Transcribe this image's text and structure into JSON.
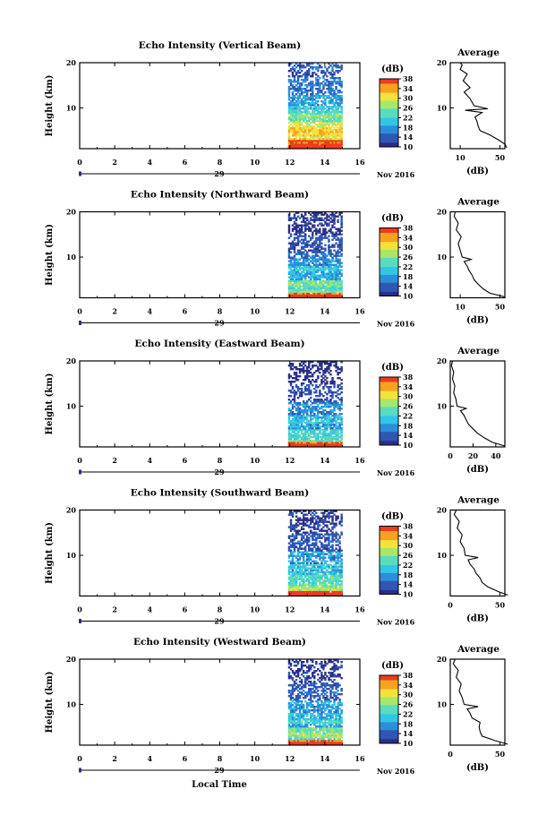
{
  "figure": {
    "time_axis_label": "Local Time",
    "date_day": "29",
    "date_month_year": "Nov 2016"
  },
  "colorbar": {
    "unit_label": "(dB)",
    "ticks": [
      "10",
      "14",
      "18",
      "22",
      "26",
      "30",
      "34",
      "38"
    ],
    "range": [
      10,
      38
    ],
    "colors": [
      "#2b2f86",
      "#2f57b4",
      "#2a8fd9",
      "#32c6e6",
      "#58dcc0",
      "#a8e66a",
      "#f2e23c",
      "#f7a21f",
      "#ee3a1f"
    ]
  },
  "chart_data": [
    {
      "type": "heatmap",
      "title": "Echo Intensity (Vertical Beam)",
      "ylabel": "Height (km)",
      "xlim": [
        0,
        16
      ],
      "ylim": [
        1,
        20
      ],
      "xticks": [
        "0",
        "2",
        "4",
        "6",
        "8",
        "10",
        "12",
        "14",
        "16"
      ],
      "yticks": [
        "20",
        "10"
      ],
      "data_time_range": [
        11.9,
        15
      ],
      "average_panel": {
        "title": "Average",
        "xlabel": "(dB)",
        "xlim": [
          0,
          55
        ],
        "xticks": [
          "10",
          "50"
        ],
        "yticks": [
          "20",
          "10"
        ],
        "profile": [
          [
            57,
            1.2
          ],
          [
            55,
            2
          ],
          [
            48,
            3
          ],
          [
            40,
            4
          ],
          [
            30,
            5
          ],
          [
            28,
            6
          ],
          [
            27,
            7
          ],
          [
            25,
            8
          ],
          [
            32,
            9
          ],
          [
            15,
            9.5
          ],
          [
            38,
            9.8
          ],
          [
            24,
            10.5
          ],
          [
            20,
            12
          ],
          [
            14,
            13.5
          ],
          [
            20,
            14.5
          ],
          [
            13,
            16
          ],
          [
            17,
            17.5
          ],
          [
            10,
            18.5
          ],
          [
            12,
            19.5
          ],
          [
            10,
            20
          ]
        ],
        "layers": [
          [
            1,
            3,
            0.95,
            0.12,
            0.01
          ],
          [
            3,
            7,
            0.78,
            0.18,
            0.05
          ],
          [
            7,
            9,
            0.55,
            0.22,
            0.08
          ],
          [
            9,
            10.6,
            0.4,
            0.2,
            0.12
          ],
          [
            10.6,
            13,
            0.3,
            0.16,
            0.22
          ],
          [
            13,
            16,
            0.22,
            0.16,
            0.4
          ],
          [
            16,
            20,
            0.14,
            0.12,
            0.55
          ]
        ]
      }
    },
    {
      "type": "heatmap",
      "title": "Echo Intensity (Northward Beam)",
      "ylabel": "Height (km)",
      "xlim": [
        0,
        16
      ],
      "ylim": [
        1,
        20
      ],
      "xticks": [
        "0",
        "2",
        "4",
        "6",
        "8",
        "10",
        "12",
        "14",
        "16"
      ],
      "yticks": [
        "20",
        "10"
      ],
      "data_time_range": [
        11.9,
        15
      ],
      "average_panel": {
        "title": "Average",
        "xlabel": "(dB)",
        "xlim": [
          0,
          55
        ],
        "xticks": [
          "10",
          "50"
        ],
        "yticks": [
          "20",
          "10"
        ],
        "profile": [
          [
            55,
            1.2
          ],
          [
            40,
            2
          ],
          [
            33,
            3
          ],
          [
            28,
            4
          ],
          [
            24,
            5
          ],
          [
            22,
            6
          ],
          [
            19,
            7
          ],
          [
            17,
            8
          ],
          [
            14,
            9
          ],
          [
            21,
            9.5
          ],
          [
            12,
            10
          ],
          [
            10,
            11.5
          ],
          [
            8,
            13
          ],
          [
            11,
            14.5
          ],
          [
            6,
            16
          ],
          [
            8,
            17.5
          ],
          [
            4,
            19
          ],
          [
            5,
            20
          ]
        ],
        "layers": [
          [
            1,
            2,
            0.95,
            0.15,
            0.01
          ],
          [
            2,
            5,
            0.5,
            0.2,
            0.05
          ],
          [
            5,
            8,
            0.35,
            0.2,
            0.12
          ],
          [
            8,
            11,
            0.25,
            0.18,
            0.25
          ],
          [
            11,
            15,
            0.12,
            0.1,
            0.4
          ],
          [
            15,
            20,
            0.05,
            0.05,
            0.5
          ]
        ]
      }
    },
    {
      "type": "heatmap",
      "title": "Echo Intensity (Eastward Beam)",
      "ylabel": "Height (km)",
      "xlim": [
        0,
        16
      ],
      "ylim": [
        1,
        20
      ],
      "xticks": [
        "0",
        "2",
        "4",
        "6",
        "8",
        "10",
        "12",
        "14",
        "16"
      ],
      "yticks": [
        "20",
        "10"
      ],
      "data_time_range": [
        11.9,
        15
      ],
      "average_panel": {
        "title": "Average",
        "xlabel": "(dB)",
        "xlim": [
          0,
          48
        ],
        "xticks": [
          "0",
          "20",
          "40"
        ],
        "yticks": [
          "20",
          "10"
        ],
        "profile": [
          [
            48,
            1.2
          ],
          [
            37,
            2
          ],
          [
            30,
            3
          ],
          [
            24,
            4
          ],
          [
            20,
            5
          ],
          [
            16,
            6
          ],
          [
            14,
            7
          ],
          [
            12,
            8
          ],
          [
            9,
            9
          ],
          [
            14,
            9.5
          ],
          [
            6,
            10
          ],
          [
            5,
            11.5
          ],
          [
            3,
            13
          ],
          [
            4,
            14.5
          ],
          [
            2,
            16
          ],
          [
            3,
            17.5
          ],
          [
            1,
            19
          ],
          [
            2,
            20
          ]
        ],
        "layers": [
          [
            1,
            2,
            0.95,
            0.15,
            0.01
          ],
          [
            2,
            5,
            0.48,
            0.2,
            0.05
          ],
          [
            5,
            8,
            0.3,
            0.2,
            0.12
          ],
          [
            8,
            11,
            0.22,
            0.18,
            0.3
          ],
          [
            11,
            15,
            0.1,
            0.1,
            0.45
          ],
          [
            15,
            20,
            0.04,
            0.04,
            0.55
          ]
        ]
      }
    },
    {
      "type": "heatmap",
      "title": "Echo Intensity (Southward Beam)",
      "ylabel": "Height (km)",
      "xlim": [
        0,
        16
      ],
      "ylim": [
        1,
        20
      ],
      "xticks": [
        "0",
        "2",
        "4",
        "6",
        "8",
        "10",
        "12",
        "14",
        "16"
      ],
      "yticks": [
        "20",
        "10"
      ],
      "data_time_range": [
        11.9,
        15
      ],
      "average_panel": {
        "title": "Average",
        "xlabel": "(dB)",
        "xlim": [
          0,
          55
        ],
        "xticks": [
          "0",
          "50"
        ],
        "yticks": [
          "20",
          "10"
        ],
        "profile": [
          [
            58,
            1.2
          ],
          [
            48,
            2
          ],
          [
            38,
            3
          ],
          [
            32,
            4
          ],
          [
            30,
            5
          ],
          [
            26,
            6
          ],
          [
            24,
            7
          ],
          [
            20,
            8
          ],
          [
            18,
            9
          ],
          [
            28,
            9.5
          ],
          [
            15,
            10
          ],
          [
            14,
            11.5
          ],
          [
            10,
            13
          ],
          [
            12,
            14.5
          ],
          [
            7,
            16
          ],
          [
            9,
            17.5
          ],
          [
            4,
            19
          ],
          [
            6,
            20
          ]
        ],
        "layers": [
          [
            1,
            2,
            0.95,
            0.15,
            0.01
          ],
          [
            2,
            5,
            0.55,
            0.2,
            0.05
          ],
          [
            5,
            8,
            0.38,
            0.2,
            0.12
          ],
          [
            8,
            11,
            0.28,
            0.18,
            0.25
          ],
          [
            11,
            15,
            0.14,
            0.12,
            0.4
          ],
          [
            15,
            20,
            0.06,
            0.05,
            0.5
          ]
        ]
      }
    },
    {
      "type": "heatmap",
      "title": "Echo Intensity (Westward Beam)",
      "ylabel": "Height (km)",
      "xlim": [
        0,
        16
      ],
      "ylim": [
        1,
        20
      ],
      "xticks": [
        "0",
        "2",
        "4",
        "6",
        "8",
        "10",
        "12",
        "14",
        "16"
      ],
      "yticks": [
        "20",
        "10"
      ],
      "data_time_range": [
        11.9,
        15
      ],
      "average_panel": {
        "title": "Average",
        "xlabel": "(dB)",
        "xlim": [
          0,
          55
        ],
        "xticks": [
          "0",
          "50"
        ],
        "yticks": [
          "20",
          "10"
        ],
        "profile": [
          [
            58,
            1.2
          ],
          [
            45,
            2
          ],
          [
            32,
            3
          ],
          [
            30,
            4
          ],
          [
            29,
            5
          ],
          [
            30,
            6
          ],
          [
            22,
            7
          ],
          [
            20,
            8
          ],
          [
            17,
            9
          ],
          [
            28,
            9.5
          ],
          [
            14,
            10
          ],
          [
            12,
            11.5
          ],
          [
            9,
            13
          ],
          [
            11,
            14.5
          ],
          [
            6,
            16
          ],
          [
            8,
            17.5
          ],
          [
            3,
            19
          ],
          [
            5,
            20
          ]
        ],
        "layers": [
          [
            1,
            2,
            0.95,
            0.15,
            0.01
          ],
          [
            2,
            5,
            0.55,
            0.22,
            0.05
          ],
          [
            5,
            8,
            0.38,
            0.2,
            0.12
          ],
          [
            8,
            11,
            0.28,
            0.18,
            0.25
          ],
          [
            11,
            15,
            0.14,
            0.12,
            0.42
          ],
          [
            15,
            20,
            0.06,
            0.05,
            0.55
          ]
        ]
      }
    }
  ]
}
